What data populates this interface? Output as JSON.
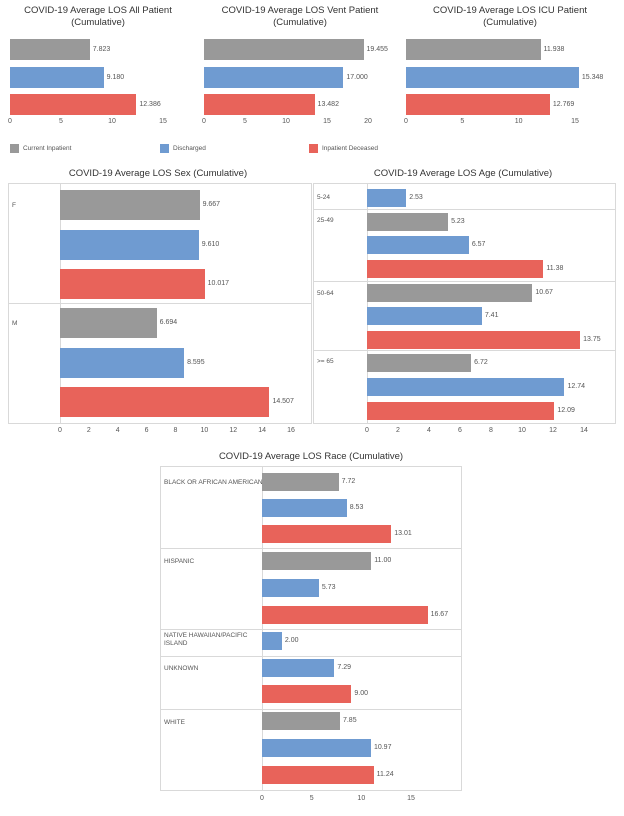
{
  "colors": {
    "current": "#999999",
    "discharged": "#6f9bd1",
    "deceased": "#e8635a"
  },
  "legend": [
    {
      "key": "current",
      "label": "Current Inpatient"
    },
    {
      "key": "discharged",
      "label": "Discharged"
    },
    {
      "key": "deceased",
      "label": "Inpatient Deceased"
    }
  ],
  "chart_data": [
    {
      "id": "all",
      "type": "bar",
      "title": [
        "COVID-19 Average LOS All Patient",
        "(Cumulative)"
      ],
      "xlim": [
        0,
        15
      ],
      "ticks": [
        0,
        5,
        10,
        15
      ],
      "groups": [
        {
          "label": "",
          "bars": [
            {
              "s": "current",
              "v": 7.823,
              "t": "7.823"
            },
            {
              "s": "discharged",
              "v": 9.18,
              "t": "9.180"
            },
            {
              "s": "deceased",
              "v": 12.386,
              "t": "12.386"
            }
          ]
        }
      ]
    },
    {
      "id": "vent",
      "type": "bar",
      "title": [
        "COVID-19 Average LOS Vent Patient",
        "(Cumulative)"
      ],
      "xlim": [
        0,
        20
      ],
      "ticks": [
        0,
        5,
        10,
        15,
        20
      ],
      "groups": [
        {
          "label": "",
          "bars": [
            {
              "s": "current",
              "v": 19.455,
              "t": "19.455"
            },
            {
              "s": "discharged",
              "v": 17.0,
              "t": "17.000"
            },
            {
              "s": "deceased",
              "v": 13.482,
              "t": "13.482"
            }
          ]
        }
      ]
    },
    {
      "id": "icu",
      "type": "bar",
      "title": [
        "COVID-19 Average LOS ICU Patient",
        "(Cumulative)"
      ],
      "xlim": [
        0,
        15
      ],
      "ticks": [
        0,
        5,
        10,
        15
      ],
      "groups": [
        {
          "label": "",
          "bars": [
            {
              "s": "current",
              "v": 11.938,
              "t": "11.938"
            },
            {
              "s": "discharged",
              "v": 15.348,
              "t": "15.348"
            },
            {
              "s": "deceased",
              "v": 12.769,
              "t": "12.769"
            }
          ]
        }
      ]
    },
    {
      "id": "sex",
      "type": "bar",
      "title": [
        "COVID-19 Average LOS Sex (Cumulative)"
      ],
      "xlim": [
        0,
        16
      ],
      "ticks": [
        0,
        2,
        4,
        6,
        8,
        10,
        12,
        14,
        16
      ],
      "groups": [
        {
          "label": "F",
          "bars": [
            {
              "s": "current",
              "v": 9.667,
              "t": "9.667"
            },
            {
              "s": "discharged",
              "v": 9.61,
              "t": "9.610"
            },
            {
              "s": "deceased",
              "v": 10.017,
              "t": "10.017"
            }
          ]
        },
        {
          "label": "M",
          "bars": [
            {
              "s": "current",
              "v": 6.694,
              "t": "6.694"
            },
            {
              "s": "discharged",
              "v": 8.595,
              "t": "8.595"
            },
            {
              "s": "deceased",
              "v": 14.507,
              "t": "14.507"
            }
          ]
        }
      ]
    },
    {
      "id": "age",
      "type": "bar",
      "title": [
        "COVID-19 Average LOS Age (Cumulative)"
      ],
      "xlim": [
        0,
        14
      ],
      "ticks": [
        0,
        2,
        4,
        6,
        8,
        10,
        12,
        14
      ],
      "groups": [
        {
          "label": "5-24",
          "bars": [
            {
              "s": "discharged",
              "v": 2.53,
              "t": "2.53"
            }
          ]
        },
        {
          "label": "25-49",
          "bars": [
            {
              "s": "current",
              "v": 5.23,
              "t": "5.23"
            },
            {
              "s": "discharged",
              "v": 6.57,
              "t": "6.57"
            },
            {
              "s": "deceased",
              "v": 11.38,
              "t": "11.38"
            }
          ]
        },
        {
          "label": "50-64",
          "bars": [
            {
              "s": "current",
              "v": 10.67,
              "t": "10.67"
            },
            {
              "s": "discharged",
              "v": 7.41,
              "t": "7.41"
            },
            {
              "s": "deceased",
              "v": 13.75,
              "t": "13.75"
            }
          ]
        },
        {
          "label": ">= 65",
          "bars": [
            {
              "s": "current",
              "v": 6.72,
              "t": "6.72"
            },
            {
              "s": "discharged",
              "v": 12.74,
              "t": "12.74"
            },
            {
              "s": "deceased",
              "v": 12.09,
              "t": "12.09"
            }
          ]
        }
      ]
    },
    {
      "id": "race",
      "type": "bar",
      "title": [
        "COVID-19 Average LOS Race (Cumulative)"
      ],
      "xlim": [
        0,
        15
      ],
      "ticks": [
        0,
        5,
        10,
        15
      ],
      "groups": [
        {
          "label": "BLACK OR AFRICAN AMERICAN",
          "bars": [
            {
              "s": "current",
              "v": 7.72,
              "t": "7.72"
            },
            {
              "s": "discharged",
              "v": 8.53,
              "t": "8.53"
            },
            {
              "s": "deceased",
              "v": 13.01,
              "t": "13.01"
            }
          ]
        },
        {
          "label": "HISPANIC",
          "bars": [
            {
              "s": "current",
              "v": 11.0,
              "t": "11.00"
            },
            {
              "s": "discharged",
              "v": 5.73,
              "t": "5.73"
            },
            {
              "s": "deceased",
              "v": 16.67,
              "t": "16.67"
            }
          ]
        },
        {
          "label": "NATIVE HAWAIIAN/PACIFIC ISLAND",
          "bars": [
            {
              "s": "discharged",
              "v": 2.0,
              "t": "2.00"
            }
          ]
        },
        {
          "label": "UNKNOWN",
          "bars": [
            {
              "s": "discharged",
              "v": 7.29,
              "t": "7.29"
            },
            {
              "s": "deceased",
              "v": 9.0,
              "t": "9.00"
            }
          ]
        },
        {
          "label": "WHITE",
          "bars": [
            {
              "s": "current",
              "v": 7.85,
              "t": "7.85"
            },
            {
              "s": "discharged",
              "v": 10.97,
              "t": "10.97"
            },
            {
              "s": "deceased",
              "v": 11.24,
              "t": "11.24"
            }
          ]
        }
      ]
    }
  ]
}
